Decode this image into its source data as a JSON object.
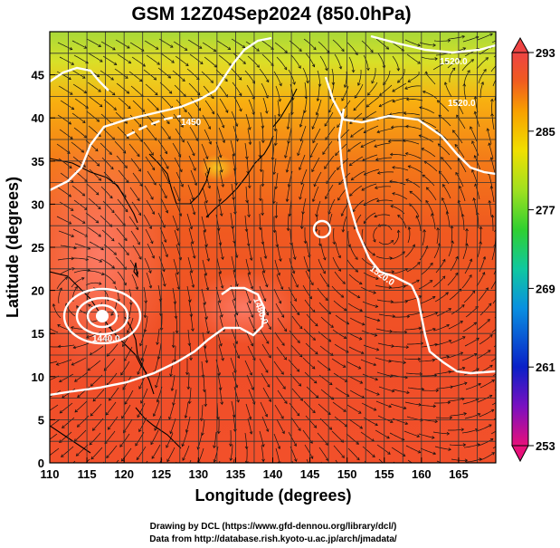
{
  "title": "GSM 12Z04Sep2024 (850.0hPa)",
  "x_axis": {
    "label": "Longitude (degrees)",
    "ticks": [
      "110",
      "115",
      "120",
      "125",
      "130",
      "135",
      "140",
      "145",
      "150",
      "155",
      "160",
      "165"
    ]
  },
  "y_axis": {
    "label": "Latitude (degrees)",
    "ticks": [
      "0",
      "5",
      "10",
      "15",
      "20",
      "25",
      "30",
      "35",
      "40",
      "45"
    ]
  },
  "colorbar": {
    "ticks": [
      "293",
      "285",
      "277",
      "269",
      "261",
      "253"
    ],
    "colors": [
      "#e8107a",
      "#7a10c0",
      "#0a20c8",
      "#0a90e0",
      "#10c8a0",
      "#30d030",
      "#a0e020",
      "#f0e000",
      "#f8a000",
      "#f05a20",
      "#ee4444"
    ]
  },
  "contour_labels": [
    "1440.0",
    "1450",
    "1520.0",
    "1520.0",
    "1520.0",
    "1480.0",
    "1540.0"
  ],
  "credits": [
    "Drawing by DCL (https://www.gfd-dennou.org/library/dcl/)",
    "Data from http://database.rish.kyoto-u.ac.jp/arch/jmadata/"
  ],
  "chart_data": {
    "type": "heatmap",
    "title": "GSM 12Z04Sep2024 (850.0hPa)",
    "xlabel": "Longitude (degrees)",
    "ylabel": "Latitude (degrees)",
    "xlim": [
      110,
      170
    ],
    "ylim": [
      0,
      50
    ],
    "colorbar_range": [
      253,
      293
    ],
    "colorbar_ticks": [
      293,
      285,
      277,
      269,
      261,
      253
    ],
    "overlays": [
      "streamlines",
      "geopotential height contours",
      "coastlines",
      "grid"
    ],
    "features": [
      {
        "type": "low-center",
        "lon": 116.8,
        "lat": 19.2
      },
      {
        "type": "closed-contour",
        "lon": 146.5,
        "lat": 29.8
      }
    ]
  }
}
